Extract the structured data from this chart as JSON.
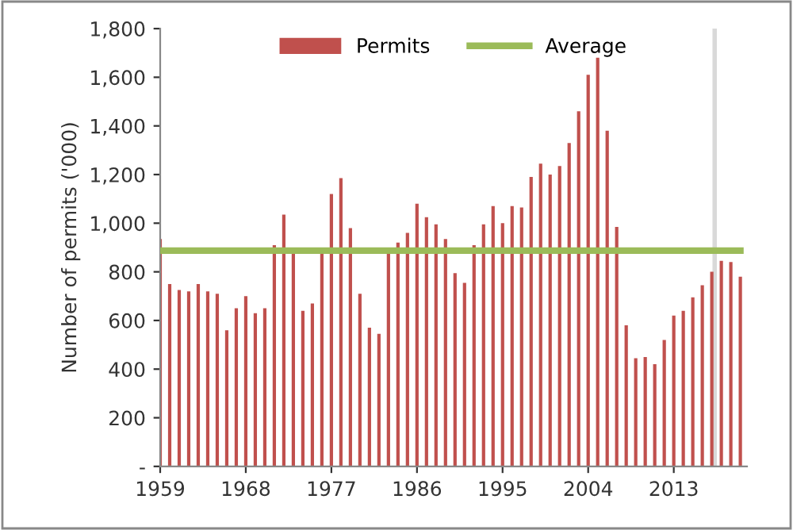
{
  "chart_data": {
    "type": "bar",
    "ylabel": "Number of permits ('000)",
    "x": [
      1959,
      1960,
      1961,
      1962,
      1963,
      1964,
      1965,
      1966,
      1967,
      1968,
      1969,
      1970,
      1971,
      1972,
      1973,
      1974,
      1975,
      1976,
      1977,
      1978,
      1979,
      1980,
      1981,
      1982,
      1983,
      1984,
      1985,
      1986,
      1987,
      1988,
      1989,
      1990,
      1991,
      1992,
      1993,
      1994,
      1995,
      1996,
      1997,
      1998,
      1999,
      2000,
      2001,
      2002,
      2003,
      2004,
      2005,
      2006,
      2007,
      2008,
      2009,
      2010,
      2011,
      2012,
      2013,
      2014,
      2015,
      2016,
      2017,
      2018,
      2019,
      2020
    ],
    "series": [
      {
        "name": "Permits",
        "color": "#c0504d",
        "values": [
          935,
          750,
          725,
          720,
          750,
          720,
          710,
          560,
          650,
          700,
          630,
          650,
          910,
          1035,
          875,
          640,
          670,
          880,
          1120,
          1185,
          980,
          710,
          570,
          545,
          880,
          920,
          960,
          1080,
          1025,
          995,
          935,
          795,
          755,
          910,
          995,
          1070,
          1000,
          1070,
          1065,
          1190,
          1245,
          1200,
          1235,
          1330,
          1460,
          1610,
          1680,
          1380,
          985,
          580,
          445,
          450,
          420,
          520,
          620,
          640,
          695,
          745,
          800,
          845,
          840,
          780
        ]
      },
      {
        "name": "Average",
        "type": "line",
        "color": "#9bbb59",
        "values": [
          887,
          887,
          887,
          887,
          887,
          887,
          887,
          887,
          887,
          887,
          887,
          887,
          887,
          887,
          887,
          887,
          887,
          887,
          887,
          887,
          887,
          887,
          887,
          887,
          887,
          887,
          887,
          887,
          887,
          887,
          887,
          887,
          887,
          887,
          887,
          887,
          887,
          887,
          887,
          887,
          887,
          887,
          887,
          887,
          887,
          887,
          887,
          887,
          887,
          887,
          887,
          887,
          887,
          887,
          887,
          887,
          887,
          887,
          887,
          887,
          887,
          887
        ]
      }
    ],
    "xlim": [
      1959,
      2020.7
    ],
    "xticks": [
      1959,
      1968,
      1977,
      1986,
      1995,
      2004,
      2013
    ],
    "ylim": [
      0,
      1800
    ],
    "yticks": [
      {
        "value": 0,
        "label": "-"
      },
      {
        "value": 200,
        "label": "200"
      },
      {
        "value": 400,
        "label": "400"
      },
      {
        "value": 600,
        "label": "600"
      },
      {
        "value": 800,
        "label": "800"
      },
      {
        "value": 1000,
        "label": "1,000"
      },
      {
        "value": 1200,
        "label": "1,200"
      },
      {
        "value": 1400,
        "label": "1,400"
      },
      {
        "value": 1600,
        "label": "1,600"
      },
      {
        "value": 1800,
        "label": "1,800"
      }
    ],
    "ref_lines": [
      {
        "axis": "x",
        "value": 2017.3,
        "color": "#d9d9d9"
      }
    ],
    "grid": false,
    "legend": "top"
  }
}
